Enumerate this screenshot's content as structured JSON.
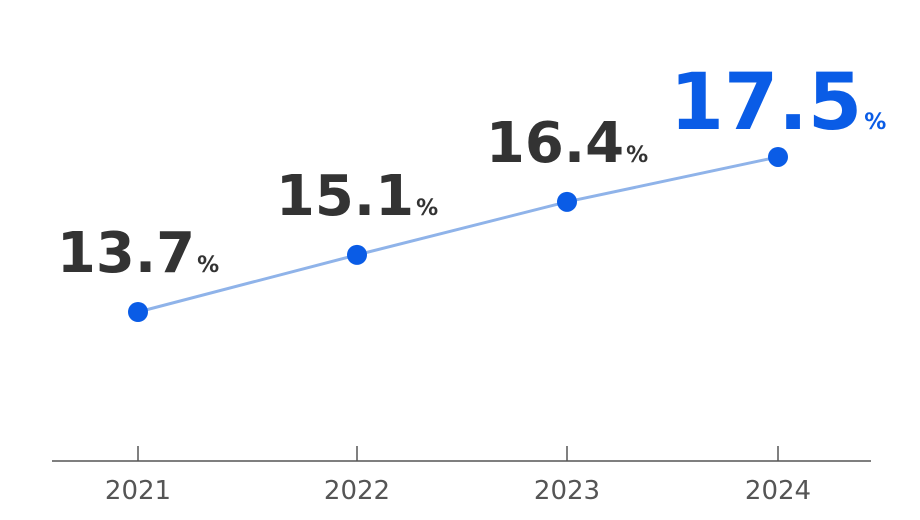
{
  "chart_data": {
    "type": "line",
    "categories": [
      "2021",
      "2022",
      "2023",
      "2024"
    ],
    "values": [
      13.7,
      15.1,
      16.4,
      17.5
    ],
    "value_labels": [
      "13.7",
      "15.1",
      "16.4",
      "17.5"
    ],
    "unit": "%",
    "title": "",
    "xlabel": "",
    "ylabel": "",
    "grid": false,
    "colors": {
      "line": "#8fb3e9",
      "point": "#0a5ce6",
      "highlight_label": "#0a5ce6",
      "label": "#333333",
      "axis": "#555555"
    }
  }
}
